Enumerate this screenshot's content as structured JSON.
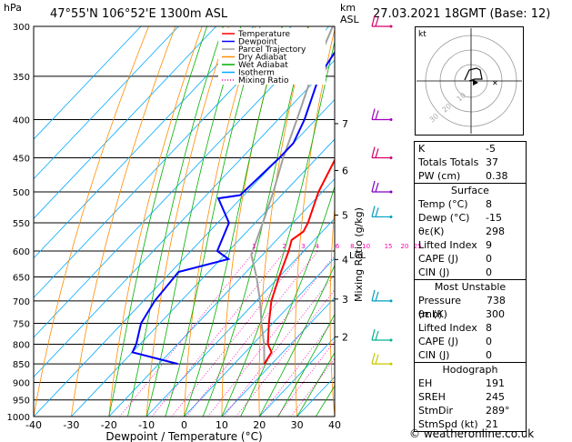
{
  "header": {
    "hpa_label": "hPa",
    "location": "47°55'N  106°52'E  1300m  ASL",
    "km_label": "km",
    "asl_label": "ASL",
    "datetime": "27.03.2021  18GMT  (Base: 12)"
  },
  "legend": {
    "items": [
      {
        "label": "Temperature",
        "color": "#ff0000",
        "style": "solid"
      },
      {
        "label": "Dewpoint",
        "color": "#0000ff",
        "style": "solid"
      },
      {
        "label": "Parcel Trajectory",
        "color": "#a0a0a0",
        "style": "solid"
      },
      {
        "label": "Dry Adiabat",
        "color": "#ff8c00",
        "style": "solid"
      },
      {
        "label": "Wet Adiabat",
        "color": "#00b000",
        "style": "solid"
      },
      {
        "label": "Isotherm",
        "color": "#00aaff",
        "style": "solid"
      },
      {
        "label": "Mixing Ratio",
        "color": "#ff00aa",
        "style": "dotted"
      }
    ]
  },
  "chart_data": {
    "type": "skew-t",
    "xlabel": "Dewpoint / Temperature (°C)",
    "ylabel_right": "Mixing Ratio (g/kg)",
    "x_ticks": [
      -40,
      -30,
      -20,
      -10,
      0,
      10,
      20,
      30,
      40
    ],
    "pressure_levels": [
      300,
      350,
      400,
      450,
      500,
      550,
      600,
      650,
      700,
      750,
      800,
      850,
      900,
      950,
      1000
    ],
    "km_ticks": [
      {
        "km": "7",
        "p": 405
      },
      {
        "km": "6",
        "p": 468
      },
      {
        "km": "5",
        "p": 537
      },
      {
        "km": "4",
        "p": 616
      },
      {
        "km": "3",
        "p": 696
      },
      {
        "km": "2",
        "p": 782
      }
    ],
    "lcl_label": "LCL",
    "lcl_pressure": 607,
    "mixing_ratio_labels": [
      "1",
      "2",
      "3",
      "4",
      "6",
      "8",
      "10",
      "15",
      "20",
      "25"
    ],
    "mixing_ratio_values": [
      1,
      2,
      3,
      4,
      6,
      8,
      10,
      15,
      20,
      25
    ],
    "temperature": [
      {
        "p": 300,
        "t": -41
      },
      {
        "p": 350,
        "t": -35
      },
      {
        "p": 400,
        "t": -29
      },
      {
        "p": 450,
        "t": -25
      },
      {
        "p": 500,
        "t": -21
      },
      {
        "p": 550,
        "t": -16
      },
      {
        "p": 565,
        "t": -15
      },
      {
        "p": 580,
        "t": -16
      },
      {
        "p": 600,
        "t": -14
      },
      {
        "p": 650,
        "t": -10
      },
      {
        "p": 700,
        "t": -6
      },
      {
        "p": 750,
        "t": -1
      },
      {
        "p": 800,
        "t": 4
      },
      {
        "p": 820,
        "t": 7
      },
      {
        "p": 850,
        "t": 8
      }
    ],
    "dewpoint": [
      {
        "p": 300,
        "t": -54
      },
      {
        "p": 350,
        "t": -50
      },
      {
        "p": 400,
        "t": -43
      },
      {
        "p": 430,
        "t": -40
      },
      {
        "p": 450,
        "t": -40
      },
      {
        "p": 505,
        "t": -41
      },
      {
        "p": 510,
        "t": -46
      },
      {
        "p": 550,
        "t": -37
      },
      {
        "p": 600,
        "t": -33
      },
      {
        "p": 615,
        "t": -28
      },
      {
        "p": 640,
        "t": -38
      },
      {
        "p": 700,
        "t": -37
      },
      {
        "p": 750,
        "t": -35
      },
      {
        "p": 800,
        "t": -31
      },
      {
        "p": 820,
        "t": -30
      },
      {
        "p": 850,
        "t": -15
      }
    ],
    "parcel": [
      {
        "p": 300,
        "t": -59
      },
      {
        "p": 350,
        "t": -52
      },
      {
        "p": 400,
        "t": -45
      },
      {
        "p": 450,
        "t": -39
      },
      {
        "p": 500,
        "t": -33
      },
      {
        "p": 550,
        "t": -28
      },
      {
        "p": 607,
        "t": -23
      },
      {
        "p": 650,
        "t": -16
      },
      {
        "p": 700,
        "t": -9
      },
      {
        "p": 750,
        "t": -3
      },
      {
        "p": 800,
        "t": 3
      },
      {
        "p": 850,
        "t": 8
      }
    ]
  },
  "hodograph": {
    "label": "kt",
    "ring_labels": [
      "10",
      "20",
      "30"
    ]
  },
  "indices": {
    "rows": [
      {
        "label": "K",
        "value": "-5"
      },
      {
        "label": "Totals Totals",
        "value": "37"
      },
      {
        "label": "PW (cm)",
        "value": "0.38"
      }
    ]
  },
  "surface": {
    "title": "Surface",
    "rows": [
      {
        "label": "Temp (°C)",
        "value": "8"
      },
      {
        "label": "Dewp (°C)",
        "value": "-15"
      },
      {
        "label": "θε(K)",
        "value": "298"
      },
      {
        "label": "Lifted Index",
        "value": "9"
      },
      {
        "label": "CAPE (J)",
        "value": "0"
      },
      {
        "label": "CIN (J)",
        "value": "0"
      }
    ]
  },
  "most_unstable": {
    "title": "Most Unstable",
    "rows": [
      {
        "label": "Pressure (mb)",
        "value": "738"
      },
      {
        "label": "θε (K)",
        "value": "300"
      },
      {
        "label": "Lifted Index",
        "value": "8"
      },
      {
        "label": "CAPE (J)",
        "value": "0"
      },
      {
        "label": "CIN (J)",
        "value": "0"
      }
    ]
  },
  "hodo_table": {
    "title": "Hodograph",
    "rows": [
      {
        "label": "EH",
        "value": "191"
      },
      {
        "label": "SREH",
        "value": "245"
      },
      {
        "label": "StmDir",
        "value": "289°"
      },
      {
        "label": "StmSpd (kt)",
        "value": "21"
      }
    ]
  },
  "copyright": "© weatheronline.co.uk"
}
